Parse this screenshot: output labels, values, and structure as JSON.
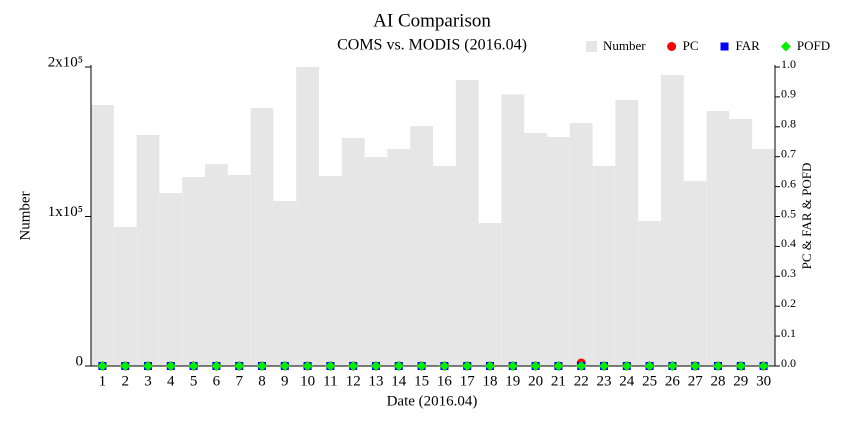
{
  "chart_data": {
    "type": "bar_points",
    "title": "AI Comparison",
    "subtitle": "COMS vs. MODIS (2016.04)",
    "xlabel": "Date (2016.04)",
    "ylabel": "Number",
    "y2label": "PC & FAR & POFD",
    "categories": [
      "1",
      "2",
      "3",
      "4",
      "5",
      "6",
      "7",
      "8",
      "9",
      "10",
      "11",
      "12",
      "13",
      "14",
      "15",
      "16",
      "17",
      "18",
      "19",
      "20",
      "21",
      "22",
      "23",
      "24",
      "25",
      "26",
      "27",
      "28",
      "29",
      "30"
    ],
    "series": [
      {
        "name": "Number",
        "color": "#e6e6e6",
        "kind": "bar",
        "values": [
          174600,
          93000,
          154500,
          115700,
          126400,
          135000,
          127800,
          172600,
          110400,
          200000,
          127100,
          152500,
          139800,
          145200,
          160500,
          133800,
          191300,
          95600,
          181600,
          155900,
          153200,
          162500,
          133800,
          178000,
          97000,
          194600,
          123700,
          170500,
          165200,
          145200
        ]
      },
      {
        "name": "PC",
        "color": "#ff0000",
        "kind": "circle",
        "axis": "y2",
        "values": [
          0,
          0,
          0,
          0,
          0,
          0,
          0,
          0,
          0,
          0,
          0,
          0,
          0,
          0,
          0,
          0,
          0,
          0,
          0,
          0,
          0,
          0.01,
          0,
          0,
          0,
          0,
          0,
          0,
          0,
          0
        ]
      },
      {
        "name": "FAR",
        "color": "#0000ff",
        "kind": "square",
        "axis": "y2",
        "values": [
          0,
          0,
          0,
          0,
          0,
          0,
          0,
          0,
          0,
          0,
          0,
          0,
          0,
          0,
          0,
          0,
          0,
          0,
          0,
          0,
          0,
          0,
          0,
          0,
          0,
          0,
          0,
          0,
          0,
          0
        ]
      },
      {
        "name": "POFD",
        "color": "#00ee00",
        "kind": "diamond",
        "axis": "y2",
        "values": [
          0,
          0,
          0,
          0,
          0,
          0,
          0,
          0,
          0,
          0,
          0,
          0,
          0,
          0,
          0,
          0,
          0,
          0,
          0,
          0,
          0,
          0,
          0,
          0,
          0,
          0,
          0,
          0,
          0,
          0
        ]
      }
    ],
    "ylim": [
      0,
      200000
    ],
    "yticks": [
      0,
      {
        "value": 100000,
        "label": "1x10⁵"
      },
      {
        "value": 200000,
        "label": "2x10⁵"
      }
    ],
    "y2lim": [
      0,
      1
    ],
    "y2ticks": [
      {
        "value": 0,
        "label": "0.0"
      },
      0.1,
      0.2,
      0.3,
      0.4,
      0.5,
      0.6,
      0.7,
      0.8,
      0.9,
      {
        "value": 1,
        "label": "1.0"
      }
    ]
  }
}
